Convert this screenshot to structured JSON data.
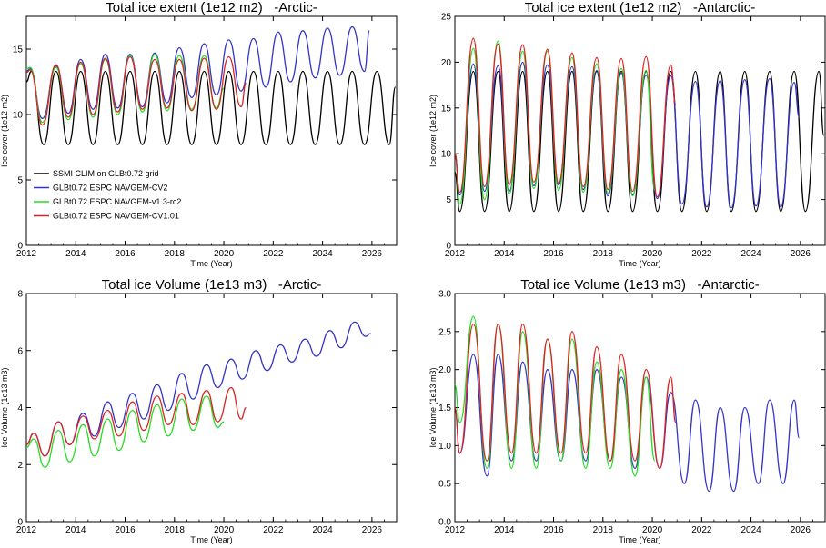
{
  "chart_data": [
    {
      "type": "line",
      "title": "Total ice extent (1e12 m2)   -Arctic-",
      "xlabel": "Time (Year)",
      "ylabel": "Ice cover (1e12 m2)",
      "xlim": [
        2012,
        2027
      ],
      "ylim": [
        0,
        17.5
      ],
      "xticks": [
        2012,
        2014,
        2016,
        2018,
        2020,
        2022,
        2024,
        2026
      ],
      "yticks": [
        0,
        5,
        10,
        15
      ],
      "ytick_labels": [
        "0",
        "5",
        "10",
        "15"
      ],
      "legend_position": "middle-left",
      "legend": [
        {
          "name": "SSMI CLIM on GLBt0.72 grid",
          "color": "#000000"
        },
        {
          "name": "GLBt0.72 ESPC NAVGEM-CV2",
          "color": "#3333cc"
        },
        {
          "name": "GLBt0.72 ESPC NAVGEM-v1.3-rc2",
          "color": "#22dd22"
        },
        {
          "name": "GLBt0.72 ESPC NAVGEM-CV1.01",
          "color": "#dd2222"
        }
      ],
      "series": [
        {
          "name": "SSMI CLIM on GLBt0.72 grid",
          "color": "#000000",
          "x": [
            2012.0,
            2012.2,
            2012.7,
            2013.2,
            2013.7,
            2014.2,
            2014.7,
            2015.2,
            2015.7,
            2016.2,
            2016.7,
            2017.2,
            2017.7,
            2018.2,
            2018.7,
            2019.2,
            2019.7,
            2020.2,
            2020.7,
            2021.2,
            2021.7,
            2022.2,
            2022.7,
            2023.2,
            2023.7,
            2024.2,
            2024.7,
            2025.2,
            2025.7,
            2026.2,
            2026.7,
            2026.95
          ],
          "y": [
            12.5,
            13.3,
            7.7,
            13.3,
            7.7,
            13.3,
            7.7,
            13.3,
            7.7,
            13.3,
            7.7,
            13.3,
            7.7,
            13.3,
            7.7,
            13.3,
            7.7,
            13.3,
            7.7,
            13.3,
            7.7,
            13.3,
            7.7,
            13.3,
            7.7,
            13.3,
            7.7,
            13.3,
            7.7,
            13.3,
            7.7,
            12.1
          ]
        },
        {
          "name": "GLBt0.72 ESPC NAVGEM-CV2",
          "color": "#3333cc",
          "x": [
            2012.0,
            2012.15,
            2012.65,
            2013.2,
            2013.7,
            2014.2,
            2014.7,
            2015.2,
            2015.7,
            2016.2,
            2016.7,
            2017.2,
            2017.7,
            2018.2,
            2018.7,
            2019.2,
            2019.7,
            2020.2,
            2020.7,
            2021.2,
            2021.7,
            2022.2,
            2022.7,
            2023.2,
            2023.7,
            2024.2,
            2024.7,
            2025.2,
            2025.7,
            2025.9
          ],
          "y": [
            13.3,
            13.5,
            9.7,
            13.7,
            10.1,
            14.2,
            10.4,
            14.6,
            10.5,
            14.6,
            10.6,
            14.7,
            10.9,
            15.1,
            11.3,
            15.4,
            11.5,
            15.7,
            11.8,
            15.8,
            12.1,
            16.3,
            12.5,
            16.4,
            12.8,
            16.6,
            13.0,
            16.7,
            13.3,
            16.4
          ]
        },
        {
          "name": "GLBt0.72 ESPC NAVGEM-v1.3-rc2",
          "color": "#22dd22",
          "x": [
            2012.0,
            2012.15,
            2012.65,
            2013.2,
            2013.7,
            2014.2,
            2014.7,
            2015.2,
            2015.7,
            2016.2,
            2016.7,
            2017.2,
            2017.7,
            2018.2,
            2018.7,
            2019.2,
            2019.7,
            2020.0
          ],
          "y": [
            13.5,
            13.6,
            9.4,
            13.6,
            9.6,
            13.9,
            9.8,
            14.2,
            10.0,
            14.5,
            10.2,
            14.6,
            10.3,
            14.5,
            10.4,
            14.5,
            10.5,
            12.0
          ]
        },
        {
          "name": "GLBt0.72 ESPC NAVGEM-CV1.01",
          "color": "#dd2222",
          "x": [
            2012.0,
            2012.15,
            2012.65,
            2013.2,
            2013.7,
            2014.2,
            2014.7,
            2015.2,
            2015.7,
            2016.2,
            2016.7,
            2017.2,
            2017.7,
            2018.2,
            2018.7,
            2019.2,
            2019.7,
            2020.2,
            2020.7,
            2020.9
          ],
          "y": [
            13.2,
            13.4,
            9.2,
            13.8,
            9.8,
            14.0,
            10.0,
            14.3,
            10.2,
            14.4,
            10.4,
            14.2,
            10.5,
            14.2,
            10.3,
            14.3,
            10.4,
            14.4,
            10.6,
            12.4
          ]
        }
      ]
    },
    {
      "type": "line",
      "title": "Total ice extent (1e12 m2)   -Antarctic-",
      "xlabel": "Time (Year)",
      "ylabel": "Ice cover (1e12 m2)",
      "xlim": [
        2012,
        2027
      ],
      "ylim": [
        0,
        25
      ],
      "xticks": [
        2012,
        2014,
        2016,
        2018,
        2020,
        2022,
        2024,
        2026
      ],
      "yticks": [
        0,
        5,
        10,
        15,
        20,
        25
      ],
      "ytick_labels": [
        "0",
        "5",
        "10",
        "15",
        "20",
        "25"
      ],
      "series": [
        {
          "name": "SSMI CLIM on GLBt0.72 grid",
          "color": "#000000",
          "x": [
            2012.0,
            2012.2,
            2012.75,
            2013.2,
            2013.75,
            2014.2,
            2014.75,
            2015.2,
            2015.75,
            2016.2,
            2016.75,
            2017.2,
            2017.75,
            2018.2,
            2018.75,
            2019.2,
            2019.75,
            2020.2,
            2020.75,
            2021.2,
            2021.75,
            2022.2,
            2022.75,
            2023.2,
            2023.75,
            2024.2,
            2024.75,
            2025.2,
            2025.75,
            2026.2,
            2026.75,
            2026.95
          ],
          "y": [
            8.0,
            3.7,
            19.0,
            3.7,
            19.0,
            3.7,
            19.0,
            3.7,
            19.0,
            3.7,
            19.0,
            3.7,
            19.0,
            3.7,
            19.0,
            3.7,
            19.0,
            3.7,
            19.0,
            3.7,
            19.0,
            3.7,
            19.0,
            3.7,
            19.0,
            3.7,
            19.0,
            3.7,
            19.0,
            3.7,
            19.0,
            12.0
          ]
        },
        {
          "name": "GLBt0.72 ESPC NAVGEM-CV2",
          "color": "#3333cc",
          "x": [
            2012.0,
            2012.2,
            2012.75,
            2013.2,
            2013.75,
            2014.2,
            2014.75,
            2015.2,
            2015.75,
            2016.2,
            2016.75,
            2017.2,
            2017.75,
            2018.2,
            2018.75,
            2019.2,
            2019.75,
            2020.2,
            2020.75,
            2021.2,
            2021.75,
            2022.2,
            2022.75,
            2023.2,
            2023.75,
            2024.2,
            2024.75,
            2025.2,
            2025.75,
            2025.95
          ],
          "y": [
            10.0,
            5.5,
            19.8,
            5.9,
            19.6,
            5.9,
            20.0,
            6.5,
            19.7,
            6.6,
            19.5,
            6.1,
            19.1,
            5.4,
            18.8,
            5.5,
            18.6,
            5.1,
            18.5,
            4.5,
            17.9,
            4.2,
            18.0,
            4.1,
            18.1,
            4.3,
            18.2,
            4.2,
            17.8,
            14.0
          ]
        },
        {
          "name": "GLBt0.72 ESPC NAVGEM-v1.3-rc2",
          "color": "#22dd22",
          "x": [
            2012.0,
            2012.2,
            2012.75,
            2013.2,
            2013.75,
            2014.2,
            2014.75,
            2015.2,
            2015.75,
            2016.2,
            2016.75,
            2017.2,
            2017.75,
            2018.2,
            2018.75,
            2019.2,
            2019.75,
            2020.1
          ],
          "y": [
            10.0,
            4.5,
            21.5,
            5.0,
            22.3,
            5.6,
            21.2,
            6.2,
            21.2,
            6.0,
            20.5,
            5.8,
            19.8,
            5.7,
            19.3,
            5.4,
            19.1,
            6.0
          ]
        },
        {
          "name": "GLBt0.72 ESPC NAVGEM-CV1.01",
          "color": "#dd2222",
          "x": [
            2012.0,
            2012.2,
            2012.75,
            2013.2,
            2013.75,
            2014.2,
            2014.75,
            2015.2,
            2015.75,
            2016.2,
            2016.75,
            2017.2,
            2017.75,
            2018.2,
            2018.75,
            2019.2,
            2019.75,
            2020.2,
            2020.75,
            2020.95
          ],
          "y": [
            10.0,
            5.8,
            22.6,
            6.4,
            22.0,
            6.6,
            21.9,
            6.9,
            21.4,
            6.8,
            21.0,
            6.4,
            20.5,
            6.1,
            20.4,
            5.9,
            20.6,
            5.3,
            19.7,
            15.4
          ]
        }
      ]
    },
    {
      "type": "line",
      "title": "Total ice Volume (1e13 m3)   -Arctic-",
      "xlabel": "Time (Year)",
      "ylabel": "Ice Volume (1e13 m3)",
      "xlim": [
        2012,
        2027
      ],
      "ylim": [
        0,
        8
      ],
      "xticks": [
        2012,
        2014,
        2016,
        2018,
        2020,
        2022,
        2024,
        2026
      ],
      "yticks": [
        0,
        2,
        4,
        6,
        8
      ],
      "ytick_labels": [
        "0",
        "2",
        "4",
        "6",
        "8"
      ],
      "series": [
        {
          "name": "GLBt0.72 ESPC NAVGEM-CV2",
          "color": "#3333cc",
          "x": [
            2012.0,
            2012.3,
            2012.75,
            2013.3,
            2013.75,
            2014.3,
            2014.75,
            2015.3,
            2015.75,
            2016.3,
            2016.75,
            2017.3,
            2017.75,
            2018.3,
            2018.75,
            2019.3,
            2019.75,
            2020.3,
            2020.75,
            2021.3,
            2021.75,
            2022.3,
            2022.75,
            2023.3,
            2023.75,
            2024.3,
            2024.75,
            2025.3,
            2025.75,
            2025.95
          ],
          "y": [
            2.7,
            3.1,
            2.3,
            3.5,
            2.7,
            3.8,
            3.0,
            4.2,
            3.3,
            4.5,
            3.6,
            4.8,
            3.9,
            5.2,
            4.3,
            5.5,
            4.7,
            5.7,
            5.0,
            6.0,
            5.3,
            6.2,
            5.6,
            6.4,
            5.8,
            6.7,
            6.1,
            7.0,
            6.5,
            6.6
          ]
        },
        {
          "name": "GLBt0.72 ESPC NAVGEM-v1.3-rc2",
          "color": "#22dd22",
          "x": [
            2012.0,
            2012.3,
            2012.75,
            2013.3,
            2013.75,
            2014.3,
            2014.75,
            2015.3,
            2015.75,
            2016.3,
            2016.75,
            2017.3,
            2017.75,
            2018.3,
            2018.75,
            2019.3,
            2019.75,
            2020.0
          ],
          "y": [
            2.6,
            2.9,
            1.9,
            3.2,
            2.1,
            3.4,
            2.3,
            3.6,
            2.5,
            3.9,
            2.8,
            4.1,
            3.0,
            4.3,
            3.2,
            4.4,
            3.3,
            3.5
          ]
        },
        {
          "name": "GLBt0.72 ESPC NAVGEM-CV1.01",
          "color": "#dd2222",
          "x": [
            2012.0,
            2012.3,
            2012.75,
            2013.3,
            2013.75,
            2014.3,
            2014.75,
            2015.3,
            2015.75,
            2016.3,
            2016.75,
            2017.3,
            2017.75,
            2018.3,
            2018.75,
            2019.3,
            2019.75,
            2020.3,
            2020.7,
            2020.9
          ],
          "y": [
            2.7,
            3.1,
            2.3,
            3.5,
            2.7,
            3.7,
            2.9,
            3.9,
            3.0,
            4.2,
            3.2,
            4.4,
            3.4,
            4.5,
            3.4,
            4.6,
            3.5,
            4.7,
            3.6,
            4.0
          ]
        }
      ]
    },
    {
      "type": "line",
      "title": "Total ice Volume (1e13 m3)   -Antarctic-",
      "xlabel": "Time (Year)",
      "ylabel": "Ice Volume (1e13 m3)",
      "xlim": [
        2012,
        2027
      ],
      "ylim": [
        0,
        3.0
      ],
      "xticks": [
        2012,
        2014,
        2016,
        2018,
        2020,
        2022,
        2024,
        2026
      ],
      "yticks": [
        0,
        0.5,
        1.0,
        1.5,
        2.0,
        2.5,
        3.0
      ],
      "ytick_labels": [
        "0.0",
        "0.5",
        "1.0",
        "1.5",
        "2.0",
        "2.5",
        "3.0"
      ],
      "series": [
        {
          "name": "GLBt0.72 ESPC NAVGEM-CV2",
          "color": "#3333cc",
          "x": [
            2012.0,
            2012.2,
            2012.75,
            2013.3,
            2013.75,
            2014.3,
            2014.75,
            2015.3,
            2015.75,
            2016.3,
            2016.75,
            2017.3,
            2017.75,
            2018.3,
            2018.75,
            2019.3,
            2019.75,
            2020.3,
            2020.75,
            2021.3,
            2021.75,
            2022.3,
            2022.75,
            2023.3,
            2023.75,
            2024.3,
            2024.75,
            2025.3,
            2025.75,
            2025.95
          ],
          "y": [
            1.5,
            0.9,
            2.2,
            0.6,
            2.2,
            0.8,
            2.1,
            0.8,
            2.0,
            0.8,
            2.0,
            0.8,
            2.0,
            0.8,
            1.9,
            0.7,
            1.9,
            0.7,
            1.7,
            0.5,
            1.6,
            0.4,
            1.5,
            0.4,
            1.5,
            0.5,
            1.6,
            0.5,
            1.6,
            1.1
          ]
        },
        {
          "name": "GLBt0.72 ESPC NAVGEM-v1.3-rc2",
          "color": "#22dd22",
          "x": [
            2012.0,
            2012.2,
            2012.75,
            2013.3,
            2013.75,
            2014.3,
            2014.75,
            2015.3,
            2015.75,
            2016.3,
            2016.75,
            2017.3,
            2017.75,
            2018.3,
            2018.75,
            2019.3,
            2019.75,
            2020.1
          ],
          "y": [
            1.8,
            1.3,
            2.7,
            0.7,
            2.6,
            0.7,
            2.5,
            0.7,
            2.4,
            0.8,
            2.4,
            0.7,
            2.1,
            0.7,
            2.0,
            0.6,
            1.9,
            0.8
          ]
        },
        {
          "name": "GLBt0.72 ESPC NAVGEM-CV1.01",
          "color": "#dd2222",
          "x": [
            2012.0,
            2012.2,
            2012.75,
            2013.3,
            2013.75,
            2014.3,
            2014.75,
            2015.3,
            2015.75,
            2016.3,
            2016.75,
            2017.3,
            2017.75,
            2018.3,
            2018.75,
            2019.3,
            2019.75,
            2020.3,
            2020.75,
            2020.95
          ],
          "y": [
            1.5,
            0.9,
            2.6,
            0.8,
            2.6,
            0.9,
            2.6,
            0.9,
            2.4,
            0.9,
            2.5,
            0.9,
            2.3,
            0.8,
            2.2,
            0.8,
            2.0,
            0.7,
            1.9,
            1.3
          ]
        }
      ]
    }
  ]
}
